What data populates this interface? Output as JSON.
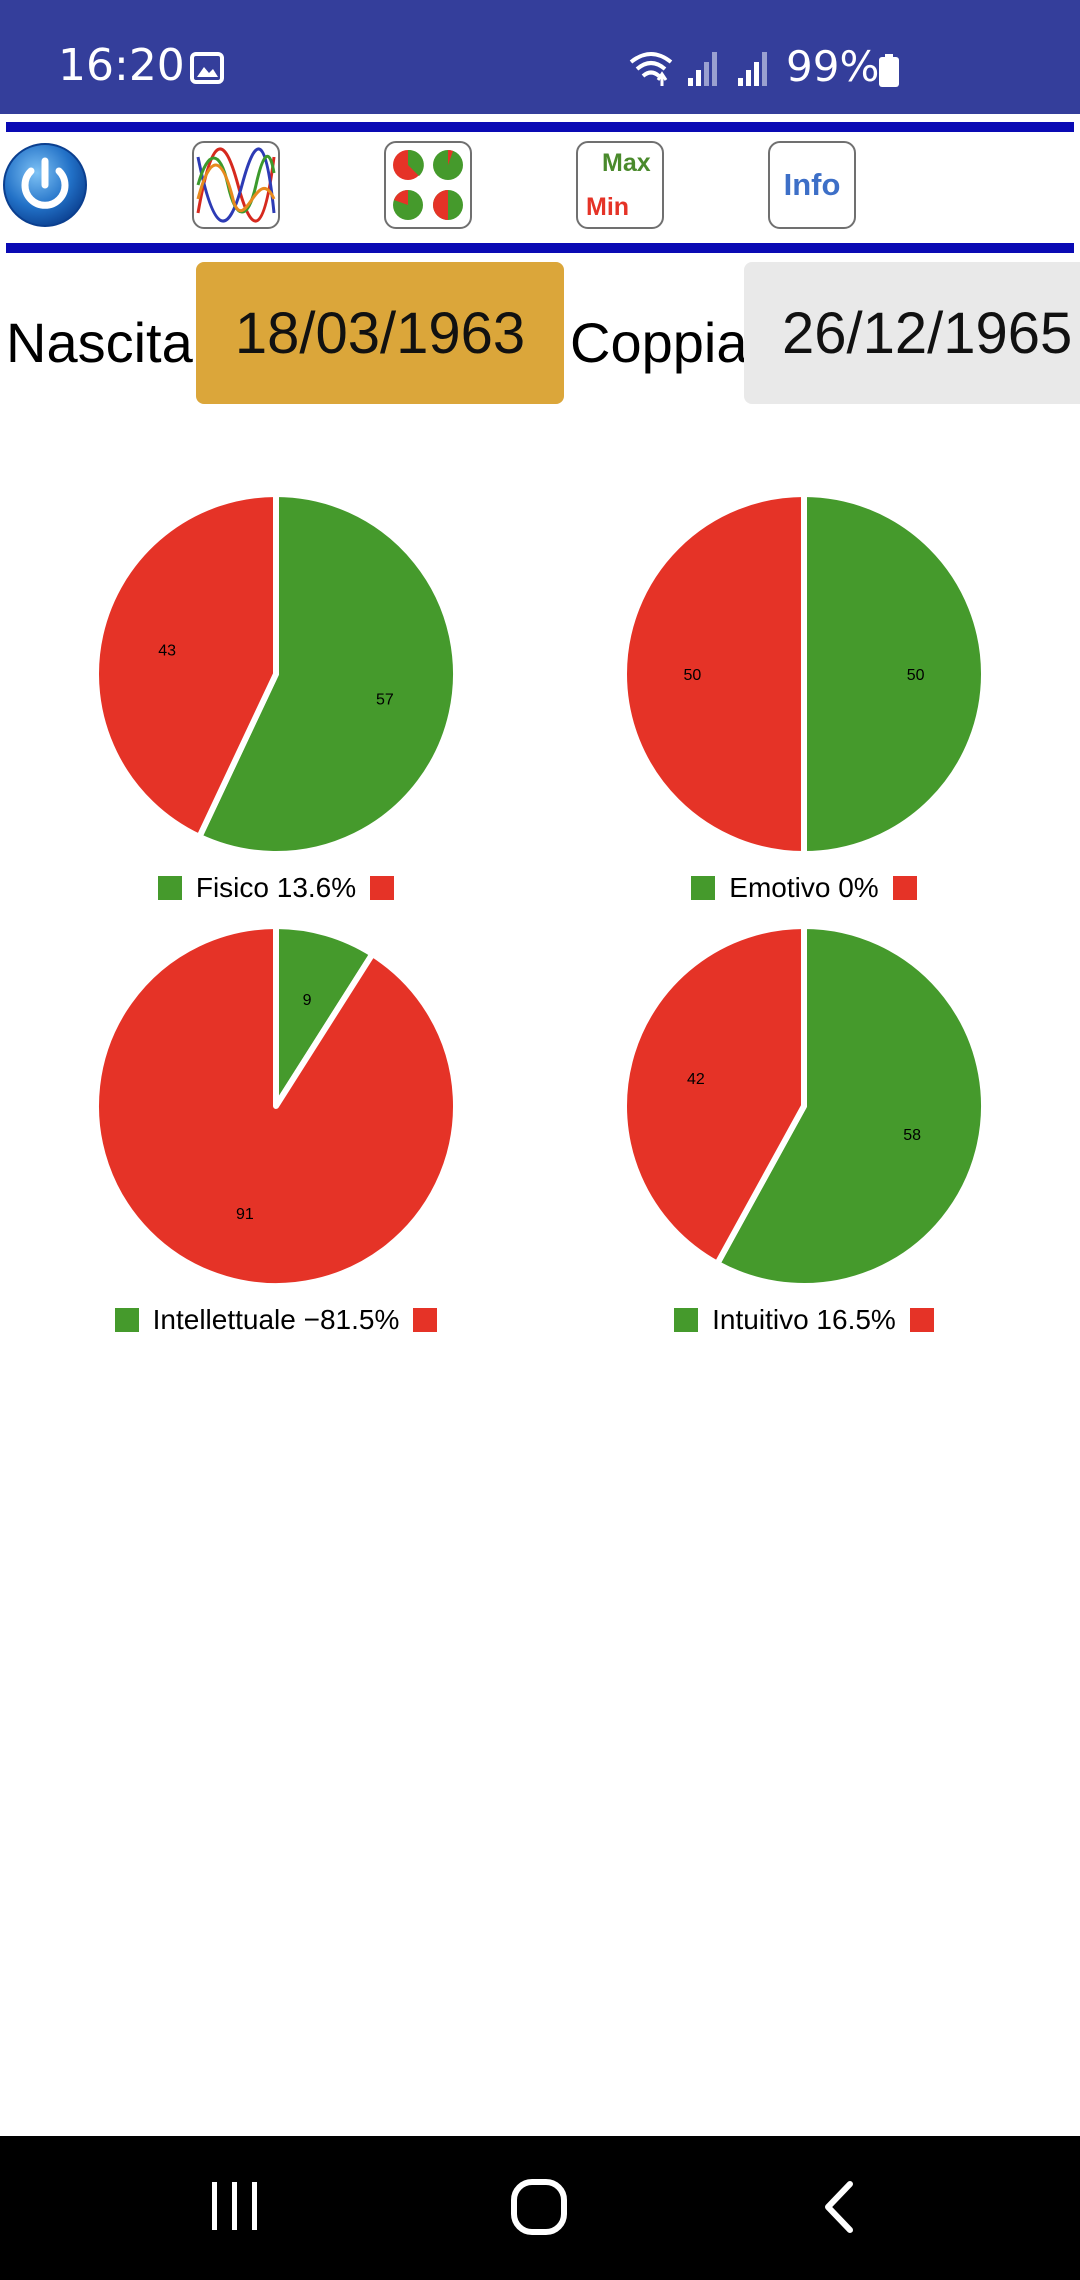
{
  "status": {
    "time": "16:20",
    "battery": "99%"
  },
  "toolbar": {
    "power": "power-button",
    "max_label": "Max",
    "min_label": "Min",
    "info_label": "Info"
  },
  "dates": {
    "birth_label": "Nascita",
    "birth_value": "18/03/1963",
    "partner_label": "Coppia",
    "partner_value": "26/12/1965"
  },
  "colors": {
    "positive": "#459a2c",
    "negative": "#e53327",
    "birth_bg": "#dba63a",
    "partner_bg": "#e9e9e9"
  },
  "chart_data": [
    {
      "type": "pie",
      "legend": "Fisico 13.6%",
      "slices": [
        {
          "value": 57,
          "label": "57",
          "color": "#459a2c"
        },
        {
          "value": 43,
          "label": "43",
          "color": "#e53327"
        }
      ]
    },
    {
      "type": "pie",
      "legend": "Emotivo 0%",
      "slices": [
        {
          "value": 50,
          "label": "50",
          "color": "#459a2c"
        },
        {
          "value": 50,
          "label": "50",
          "color": "#e53327"
        }
      ]
    },
    {
      "type": "pie",
      "legend": "Intellettuale −81.5%",
      "slices": [
        {
          "value": 9,
          "label": "9",
          "color": "#459a2c"
        },
        {
          "value": 91,
          "label": "91",
          "color": "#e53327"
        }
      ]
    },
    {
      "type": "pie",
      "legend": "Intuitivo 16.5%",
      "slices": [
        {
          "value": 58,
          "label": "58",
          "color": "#459a2c"
        },
        {
          "value": 42,
          "label": "42",
          "color": "#e53327"
        }
      ]
    }
  ]
}
